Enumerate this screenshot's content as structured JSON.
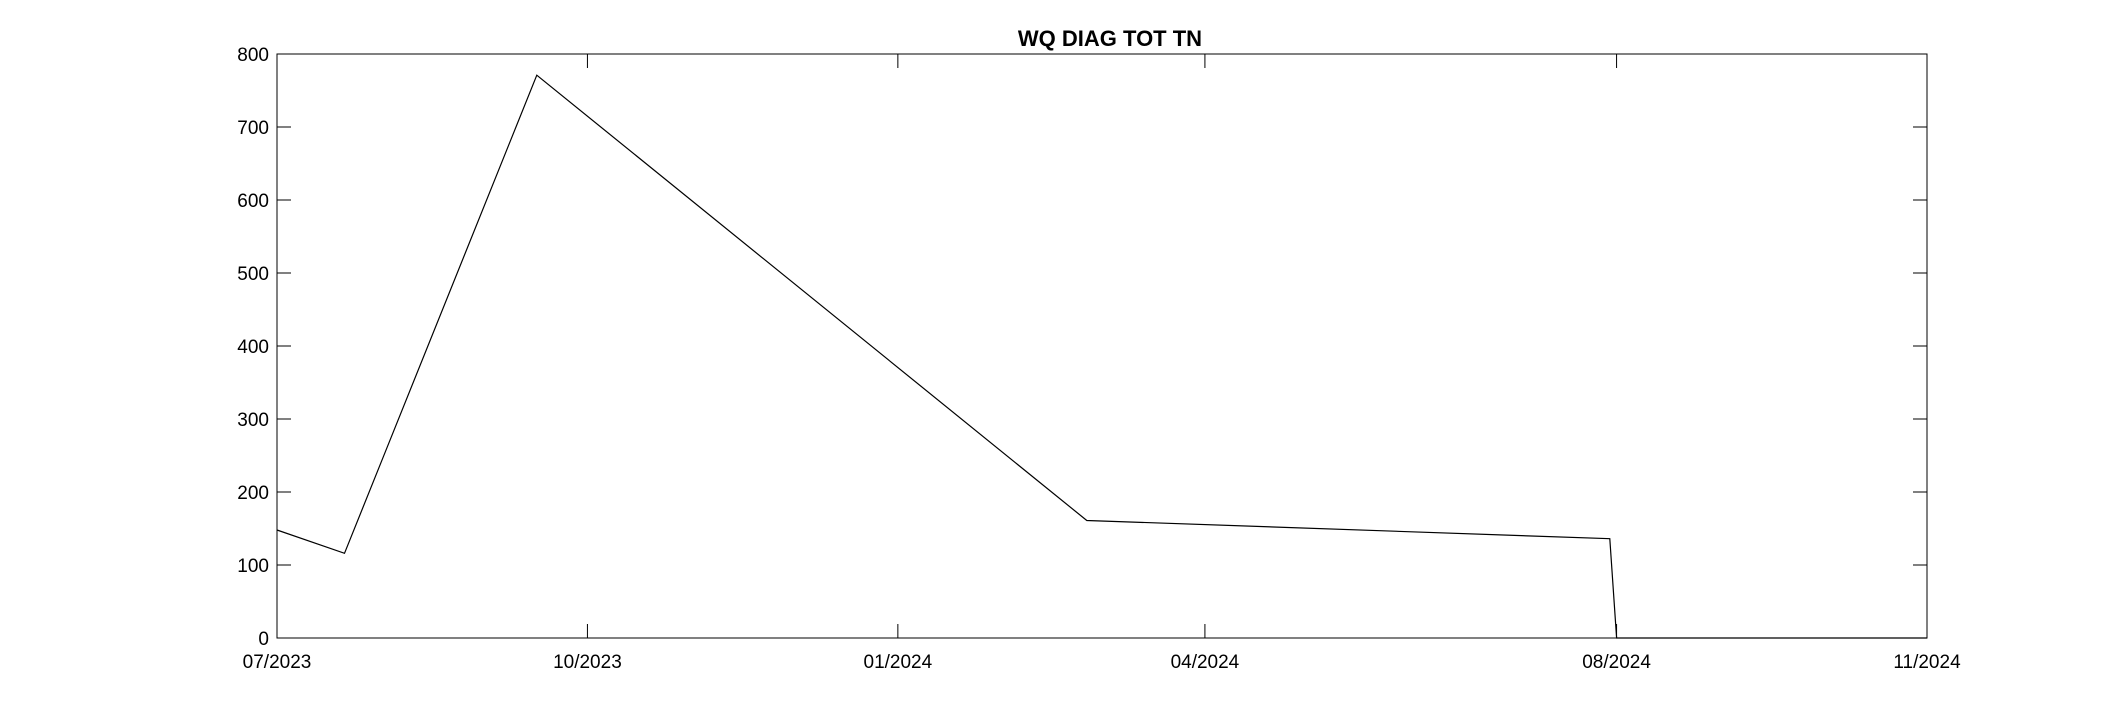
{
  "chart_data": {
    "type": "line",
    "title": "WQ DIAG TOT TN",
    "xlabel": "",
    "ylabel": "",
    "x_axis_type": "date",
    "xlim": [
      "2023-07-01",
      "2024-11-01"
    ],
    "ylim": [
      0,
      800
    ],
    "grid": false,
    "legend": "none",
    "x_ticks": [
      {
        "value": "2023-07-01",
        "label": "07/2023"
      },
      {
        "value": "2023-10-01",
        "label": "10/2023"
      },
      {
        "value": "2024-01-01",
        "label": "01/2024"
      },
      {
        "value": "2024-04-01",
        "label": "04/2024"
      },
      {
        "value": "2024-08-01",
        "label": "08/2024"
      },
      {
        "value": "2024-11-01",
        "label": "11/2024"
      }
    ],
    "y_ticks": [
      0,
      100,
      200,
      300,
      400,
      500,
      600,
      700,
      800
    ],
    "series": [
      {
        "color": "#000000",
        "points": [
          {
            "x": "2023-07-01",
            "y": 148
          },
          {
            "x": "2023-07-21",
            "y": 116
          },
          {
            "x": "2023-09-16",
            "y": 771
          },
          {
            "x": "2024-02-26",
            "y": 161
          },
          {
            "x": "2024-07-30",
            "y": 136
          },
          {
            "x": "2024-08-01",
            "y": 0
          },
          {
            "x": "2024-11-01",
            "y": 0
          }
        ]
      }
    ]
  }
}
